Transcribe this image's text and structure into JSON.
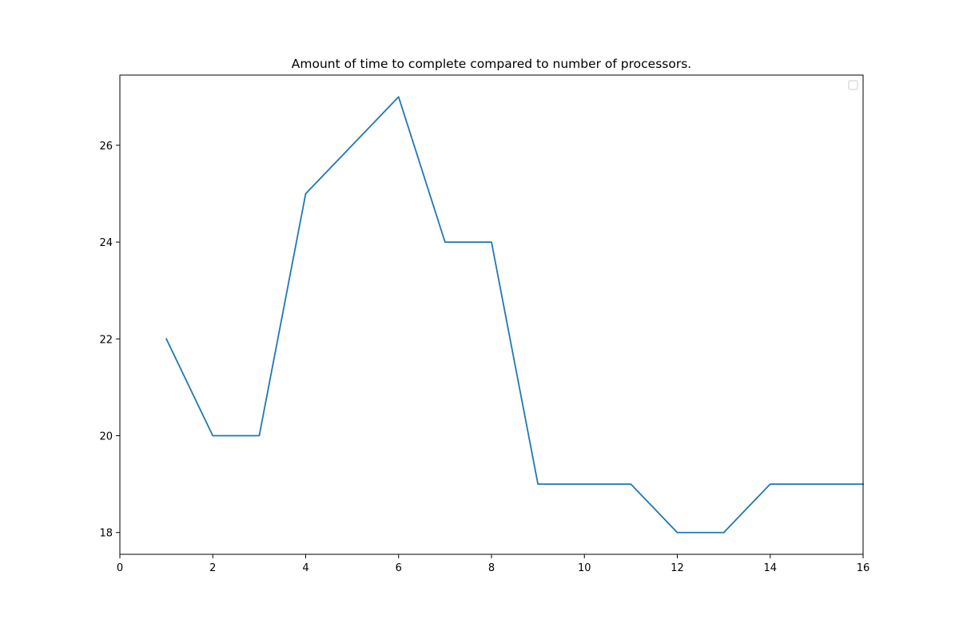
{
  "chart_data": {
    "type": "line",
    "title": "Amount of time to complete compared to number of processors.",
    "xlabel": "",
    "ylabel": "",
    "xlim": [
      0,
      16
    ],
    "ylim": [
      17.55,
      27.45
    ],
    "xticks": [
      0,
      2,
      4,
      6,
      8,
      10,
      12,
      14,
      16
    ],
    "yticks": [
      18,
      20,
      22,
      24,
      26
    ],
    "grid": false,
    "legend": {
      "placement": "top-right",
      "entries": []
    },
    "series": [
      {
        "color": "#1f77b4",
        "x": [
          1,
          2,
          3,
          4,
          5,
          6,
          7,
          8,
          9,
          10,
          11,
          12,
          13,
          14,
          15,
          16
        ],
        "y": [
          22,
          20,
          20,
          25,
          26,
          27,
          24,
          24,
          19,
          19,
          19,
          18,
          18,
          19,
          19,
          19
        ]
      }
    ]
  }
}
